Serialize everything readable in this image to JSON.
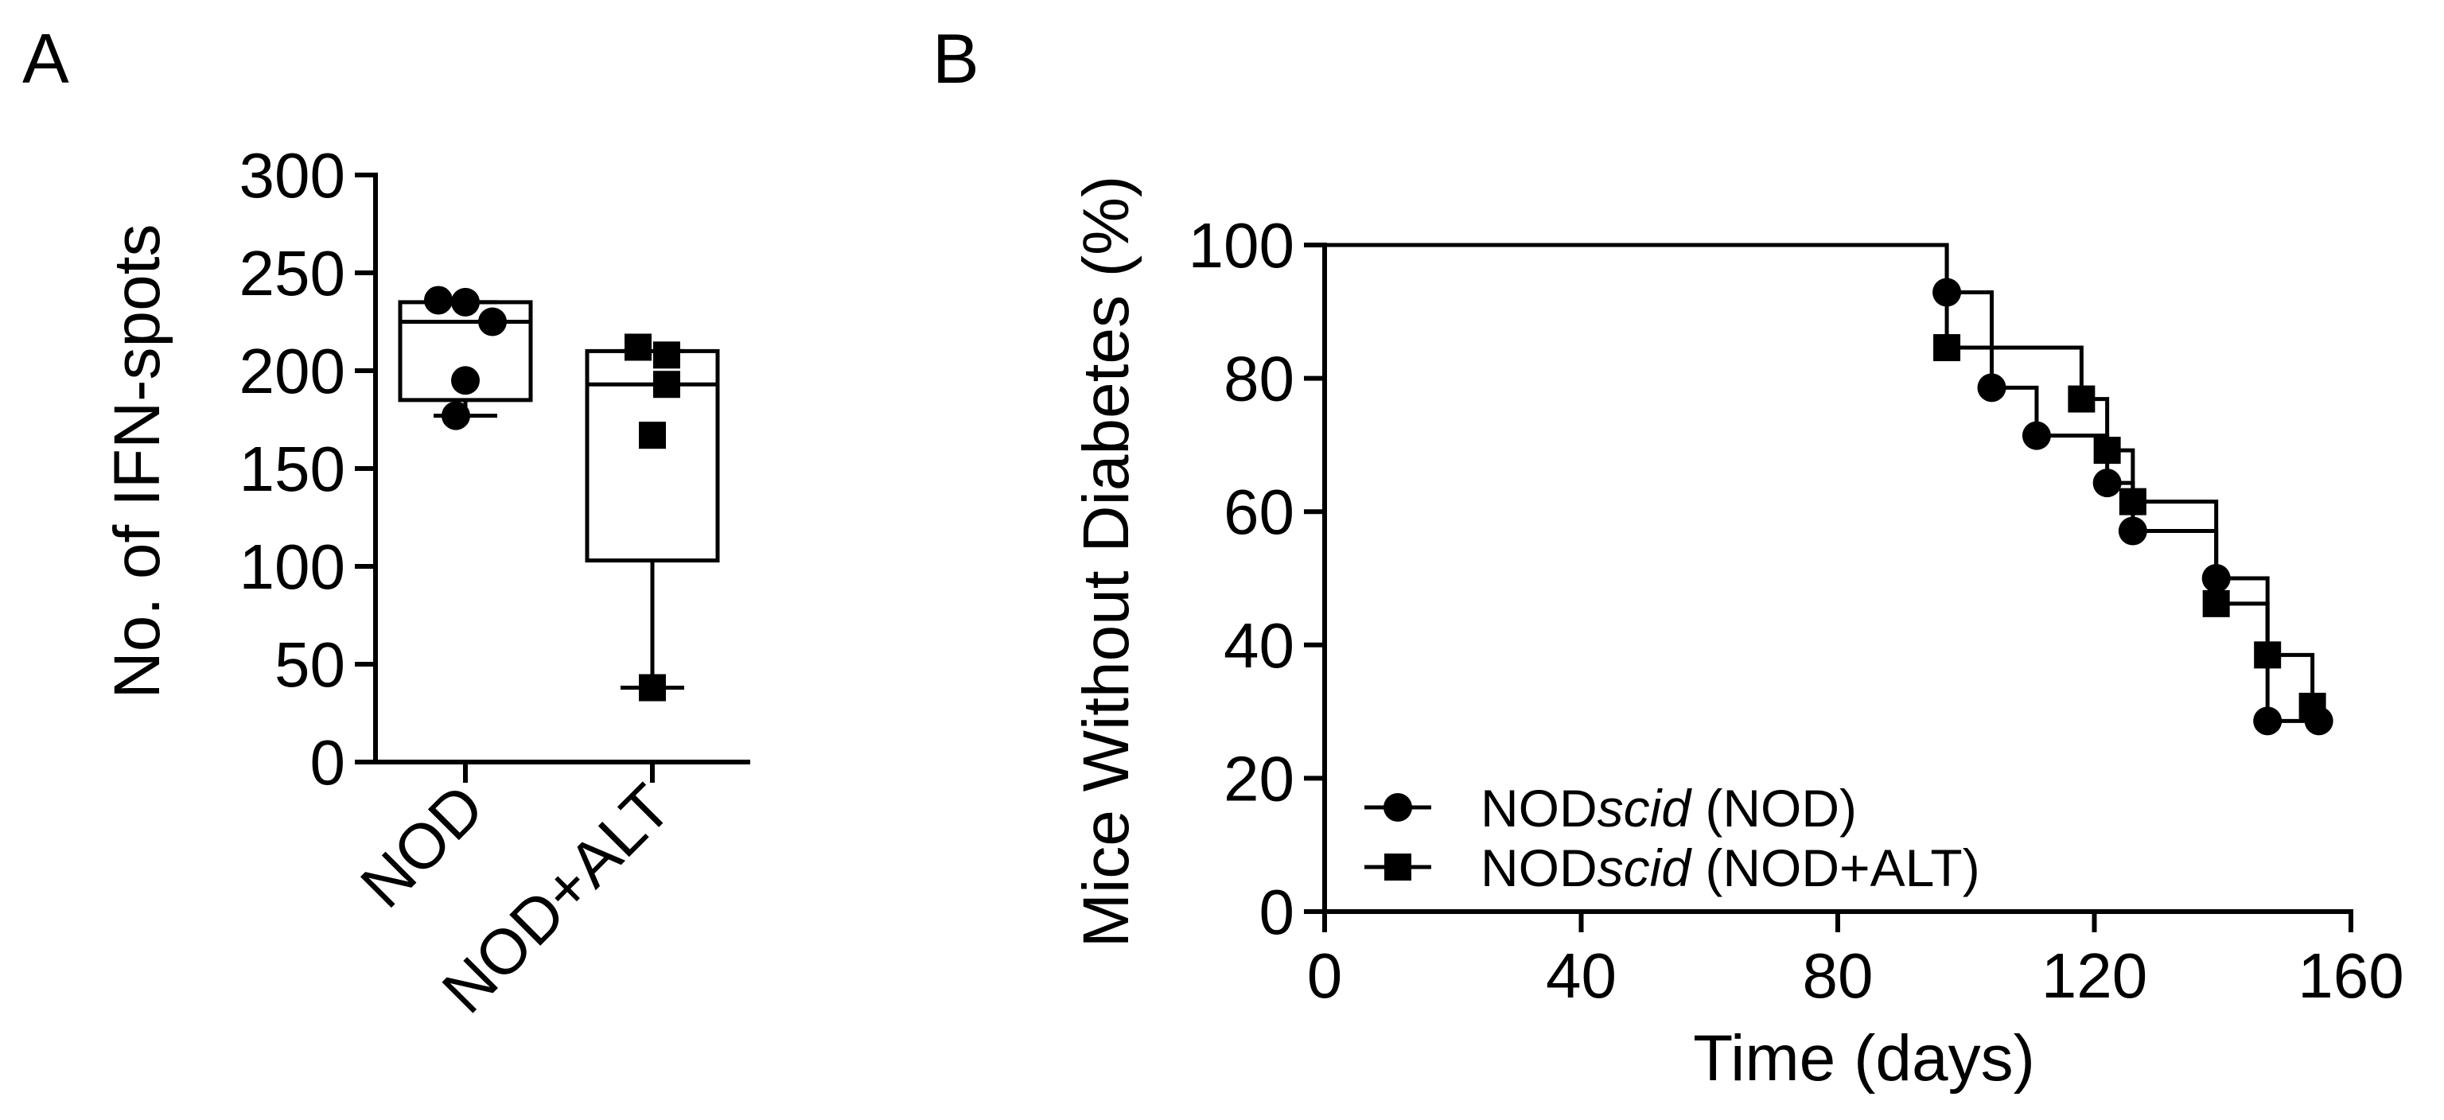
{
  "panel_labels": {
    "a": "A",
    "b": "B"
  },
  "chart_data": [
    {
      "type": "box",
      "panel": "A",
      "title": "",
      "ylabel": "No. of IFN-spots",
      "xlabel": "",
      "ylim": [
        0,
        300
      ],
      "yticks": [
        0,
        50,
        100,
        150,
        200,
        250,
        300
      ],
      "categories": [
        "NOD",
        "NOD+ALT"
      ],
      "boxes": [
        {
          "min": 177,
          "q1": 185,
          "median": 225,
          "q3": 235,
          "max": 235
        },
        {
          "min": 38,
          "q1": 103,
          "median": 193,
          "q3": 210,
          "max": 210
        }
      ],
      "points": [
        {
          "marker": "circle",
          "values": [
            236,
            235,
            225,
            195,
            177
          ]
        },
        {
          "marker": "square",
          "values": [
            212,
            208,
            193,
            167,
            38
          ]
        }
      ]
    },
    {
      "type": "line",
      "subtype": "kaplan-meier",
      "panel": "B",
      "title": "",
      "xlabel": "Time (days)",
      "ylabel": "Mice Without Diabetes (%)",
      "xlim": [
        0,
        160
      ],
      "ylim": [
        0,
        100
      ],
      "xticks": [
        0,
        40,
        80,
        120,
        160
      ],
      "yticks": [
        0,
        20,
        40,
        60,
        80,
        100
      ],
      "legend_position": "bottom-left",
      "series": [
        {
          "name_parts": [
            "NOD",
            "scid",
            " (NOD)"
          ],
          "marker": "circle",
          "steps": [
            [
              0,
              100
            ],
            [
              97,
              92.9
            ],
            [
              104,
              78.6
            ],
            [
              111,
              71.4
            ],
            [
              122,
              64.3
            ],
            [
              126,
              57.1
            ],
            [
              139,
              50.0
            ],
            [
              147,
              28.6
            ],
            [
              155,
              28.6
            ]
          ],
          "censored": [
            [
              155,
              28.6
            ]
          ]
        },
        {
          "name_parts": [
            "NOD",
            "scid",
            " (NOD+ALT)"
          ],
          "marker": "square",
          "steps": [
            [
              0,
              100
            ],
            [
              97,
              84.6
            ],
            [
              118,
              76.9
            ],
            [
              122,
              69.2
            ],
            [
              126,
              61.5
            ],
            [
              139,
              46.2
            ],
            [
              147,
              38.5
            ],
            [
              154,
              30.8
            ]
          ],
          "censored": [
            [
              154,
              30.8
            ]
          ]
        }
      ]
    }
  ]
}
